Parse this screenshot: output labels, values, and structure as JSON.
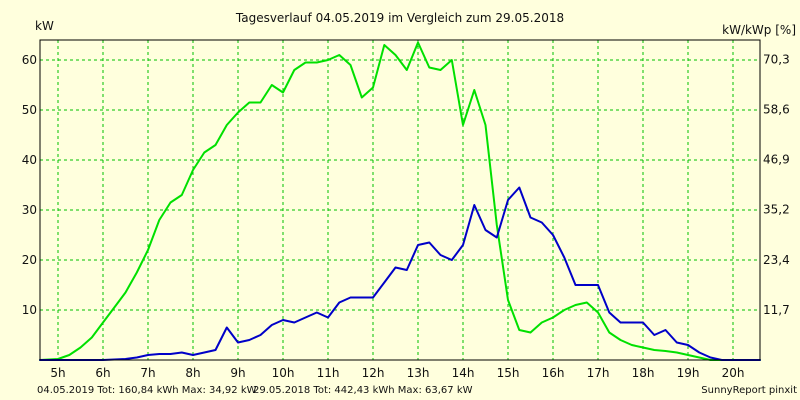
{
  "chart_data": {
    "type": "line",
    "title": "Tagesverlauf 04.05.2019 im Vergleich zum 29.05.2018",
    "ylabel_left": "kW",
    "ylabel_right": "kW/kWp [%]",
    "xlim": [
      4.6,
      20.6
    ],
    "ylim": [
      0,
      64
    ],
    "grid": true,
    "x_ticks": [
      5,
      6,
      7,
      8,
      9,
      10,
      11,
      12,
      13,
      14,
      15,
      16,
      17,
      18,
      19,
      20
    ],
    "x_tick_labels": [
      "5h",
      "6h",
      "7h",
      "8h",
      "9h",
      "10h",
      "11h",
      "12h",
      "13h",
      "14h",
      "15h",
      "16h",
      "17h",
      "18h",
      "19h",
      "20h"
    ],
    "y_ticks_left": [
      10,
      20,
      30,
      40,
      50,
      60
    ],
    "y_tick_labels_left": [
      "10",
      "20",
      "30",
      "40",
      "50",
      "60"
    ],
    "y_ticks_right": [
      11.7,
      23.4,
      35.2,
      46.9,
      58.6,
      70.3
    ],
    "y_tick_labels_right": [
      "11,7",
      "23,4",
      "35,2",
      "46,9",
      "58,6",
      "70,3"
    ],
    "series": [
      {
        "color": "#00e000",
        "x": [
          4.6,
          5.0,
          5.25,
          5.5,
          5.75,
          6.0,
          6.25,
          6.5,
          6.75,
          7.0,
          7.25,
          7.5,
          7.75,
          8.0,
          8.25,
          8.5,
          8.75,
          9.0,
          9.25,
          9.5,
          9.75,
          10.0,
          10.25,
          10.5,
          10.75,
          11.0,
          11.25,
          11.5,
          11.75,
          12.0,
          12.25,
          12.5,
          12.75,
          13.0,
          13.25,
          13.5,
          13.75,
          14.0,
          14.25,
          14.5,
          14.75,
          15.0,
          15.25,
          15.5,
          15.75,
          16.0,
          16.25,
          16.5,
          16.75,
          17.0,
          17.25,
          17.5,
          17.75,
          18.0,
          18.25,
          18.5,
          18.75,
          19.0,
          19.25,
          19.5,
          19.75,
          20.0,
          20.3,
          20.6
        ],
        "y": [
          0.0,
          0.2,
          1.0,
          2.5,
          4.5,
          7.5,
          10.5,
          13.5,
          17.5,
          22.0,
          28.0,
          31.5,
          33.0,
          38.0,
          41.5,
          43.0,
          47.0,
          49.5,
          51.5,
          51.5,
          55.0,
          53.5,
          58.0,
          59.5,
          59.5,
          60.0,
          61.0,
          59.0,
          52.5,
          54.5,
          63.0,
          61.0,
          58.0,
          63.5,
          58.5,
          58.0,
          60.0,
          47.0,
          54.0,
          47.0,
          27.0,
          12.0,
          6.0,
          5.5,
          7.5,
          8.5,
          10.0,
          11.0,
          11.5,
          9.5,
          5.5,
          4.0,
          3.0,
          2.5,
          2.0,
          1.8,
          1.5,
          1.0,
          0.5,
          0.0,
          0.0,
          0.0,
          0.0,
          0.0
        ]
      },
      {
        "color": "#0000c8",
        "x": [
          4.6,
          5.0,
          5.5,
          6.0,
          6.5,
          6.75,
          7.0,
          7.25,
          7.5,
          7.75,
          8.0,
          8.25,
          8.5,
          8.75,
          9.0,
          9.25,
          9.5,
          9.75,
          10.0,
          10.25,
          10.5,
          10.75,
          11.0,
          11.25,
          11.5,
          11.75,
          12.0,
          12.25,
          12.5,
          12.75,
          13.0,
          13.25,
          13.5,
          13.75,
          14.0,
          14.25,
          14.5,
          14.75,
          15.0,
          15.25,
          15.5,
          15.75,
          16.0,
          16.25,
          16.5,
          16.75,
          17.0,
          17.25,
          17.5,
          17.75,
          18.0,
          18.25,
          18.5,
          18.75,
          19.0,
          19.25,
          19.5,
          19.75,
          20.0,
          20.3,
          20.6
        ],
        "y": [
          0.0,
          0.0,
          0.0,
          0.0,
          0.2,
          0.5,
          1.0,
          1.2,
          1.2,
          1.5,
          1.0,
          1.5,
          2.0,
          6.5,
          3.5,
          4.0,
          5.0,
          7.0,
          8.0,
          7.5,
          8.5,
          9.5,
          8.5,
          11.5,
          12.5,
          12.5,
          12.5,
          15.5,
          18.5,
          18.0,
          23.0,
          23.5,
          21.0,
          20.0,
          23.0,
          31.0,
          26.0,
          24.5,
          32.0,
          34.5,
          28.5,
          27.5,
          25.0,
          20.5,
          15.0,
          15.0,
          15.0,
          9.5,
          7.5,
          7.5,
          7.5,
          5.0,
          6.0,
          3.5,
          3.0,
          1.5,
          0.5,
          0.0,
          0.0,
          0.0,
          0.0
        ]
      }
    ],
    "footer": [
      {
        "text": "04.05.2019 Tot: 160,84 kWh Max: 34,92 kW",
        "color": "#0000c8"
      },
      {
        "text": "29.05.2018 Tot: 442,43 kWh Max: 63,67 kW",
        "color": "#00c000"
      },
      {
        "text": "SunnyReport pinxit",
        "color": "#111111"
      }
    ]
  }
}
